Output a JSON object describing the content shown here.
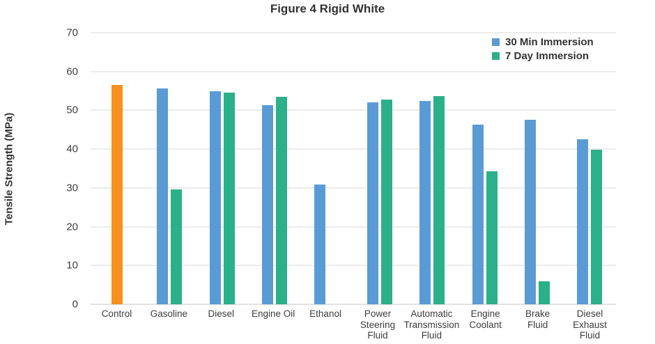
{
  "chart_data": {
    "type": "bar",
    "title": "Figure 4 Rigid White",
    "xlabel": "",
    "ylabel": "Tensile Strength (MPa)",
    "ylim": [
      0,
      70
    ],
    "yticks": [
      0,
      10,
      20,
      30,
      40,
      50,
      60,
      70
    ],
    "grid": "horizontal",
    "legend_position": "top-right",
    "colors": {
      "control": "#F5921E",
      "30min": "#5B9BD5",
      "7day": "#2BB089",
      "gridline": "#d9d9d9"
    },
    "series": [
      {
        "key": "30min",
        "name": "30 Min Immersion",
        "color": "#5B9BD5"
      },
      {
        "key": "7day",
        "name": "7 Day Immersion",
        "color": "#2BB089"
      }
    ],
    "groups": [
      {
        "id": "control",
        "label": "Control",
        "bars": [
          {
            "series": "control",
            "value": 56.5
          }
        ]
      },
      {
        "id": "gasoline",
        "label": "Gasoline",
        "bars": [
          {
            "series": "30min",
            "value": 55.7
          },
          {
            "series": "7day",
            "value": 29.6
          }
        ]
      },
      {
        "id": "diesel",
        "label": "Diesel",
        "bars": [
          {
            "series": "30min",
            "value": 54.9
          },
          {
            "series": "7day",
            "value": 54.5
          }
        ]
      },
      {
        "id": "engine-oil",
        "label": "Engine Oil",
        "bars": [
          {
            "series": "30min",
            "value": 51.3
          },
          {
            "series": "7day",
            "value": 53.5
          }
        ]
      },
      {
        "id": "ethanol",
        "label": "Ethanol",
        "bars": [
          {
            "series": "30min",
            "value": 30.9
          },
          {
            "series": "7day",
            "value": null
          }
        ]
      },
      {
        "id": "power-steering-fluid",
        "label": "Power\nSteering\nFluid",
        "bars": [
          {
            "series": "30min",
            "value": 52.1
          },
          {
            "series": "7day",
            "value": 52.7
          }
        ]
      },
      {
        "id": "automatic-transmission-fluid",
        "label": "Automatic\nTransmission\nFluid",
        "bars": [
          {
            "series": "30min",
            "value": 52.4
          },
          {
            "series": "7day",
            "value": 53.6
          }
        ]
      },
      {
        "id": "engine-coolant",
        "label": "Engine\nCoolant",
        "bars": [
          {
            "series": "30min",
            "value": 46.4
          },
          {
            "series": "7day",
            "value": 34.3
          }
        ]
      },
      {
        "id": "brake-fluid",
        "label": "Brake\nFluid",
        "bars": [
          {
            "series": "30min",
            "value": 47.5
          },
          {
            "series": "7day",
            "value": 5.9
          }
        ]
      },
      {
        "id": "diesel-exhaust-fluid",
        "label": "Diesel\nExhaust\nFluid",
        "bars": [
          {
            "series": "30min",
            "value": 42.6
          },
          {
            "series": "7day",
            "value": 39.8
          }
        ]
      }
    ]
  }
}
